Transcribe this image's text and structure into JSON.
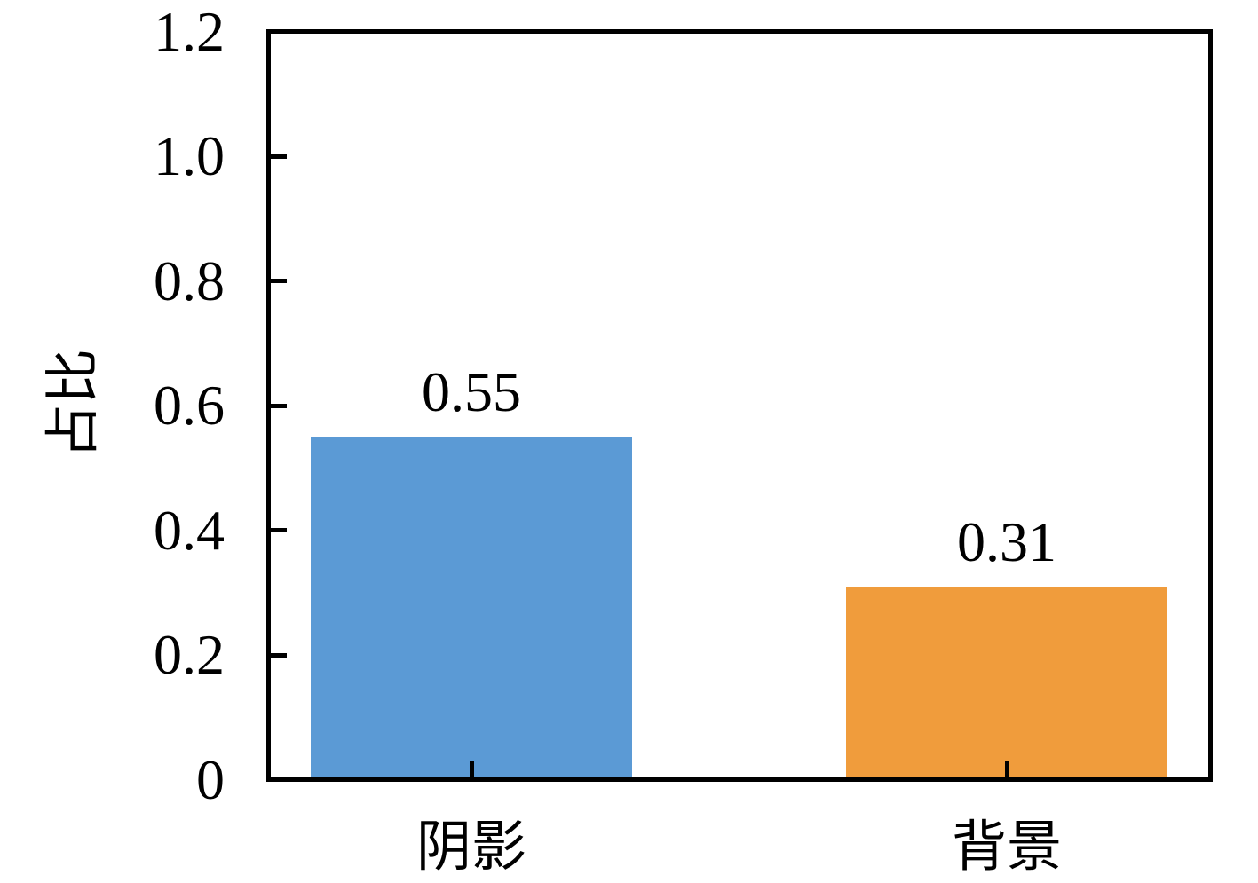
{
  "chart_data": {
    "type": "bar",
    "categories": [
      "阴影",
      "背景"
    ],
    "values": [
      0.55,
      0.31
    ],
    "bar_value_labels": [
      "0.55",
      "0.31"
    ],
    "bar_colors": [
      "#5b9ad5",
      "#f09c3c"
    ],
    "title": "",
    "xlabel": "",
    "ylabel": "占比",
    "ylim": [
      0,
      1.2
    ],
    "yticks": [
      0,
      0.2,
      0.4,
      0.6,
      0.8,
      1.0,
      1.2
    ],
    "ytick_labels": [
      "0",
      "0.2",
      "0.4",
      "0.6",
      "0.8",
      "1.0",
      "1.2"
    ],
    "grid": false,
    "legend": false,
    "tick_direction": "in",
    "axis_color": "#000000",
    "text_color": "#000000",
    "background_color": "#ffffff"
  }
}
